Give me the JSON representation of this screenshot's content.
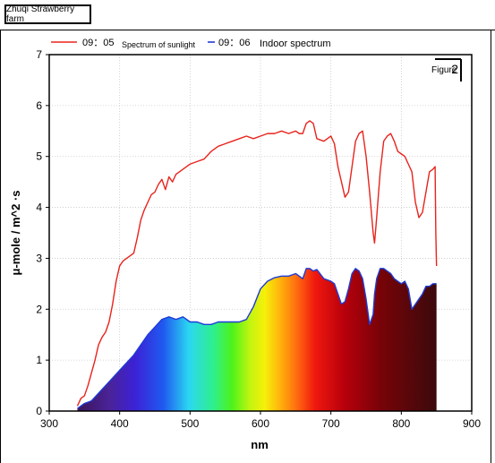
{
  "header": {
    "farm_label": "Zhuqi Strawberry farm"
  },
  "figure_label": {
    "prefix": "Figure",
    "number": "2"
  },
  "chart_data": {
    "type": "line",
    "title": "",
    "xlabel": "nm",
    "ylabel": "μ-mole / m^2 ·s",
    "xlim": [
      300,
      900
    ],
    "ylim": [
      0,
      7
    ],
    "x_ticks": [
      "300",
      "400",
      "500",
      "600",
      "700",
      "800",
      "900"
    ],
    "y_ticks": [
      "0",
      "1",
      "2",
      "3",
      "4",
      "5",
      "6",
      "7"
    ],
    "grid": true,
    "legend_position": "top",
    "legend": [
      {
        "time": "09：05",
        "label": "Spectrum of sunlight",
        "color": "#e8231c"
      },
      {
        "time": "09：06",
        "label": "Indoor spectrum",
        "color": "#1f3bd6"
      }
    ],
    "series": [
      {
        "name": "Spectrum of sunlight",
        "color": "#e8231c",
        "x": [
          340,
          345,
          350,
          355,
          360,
          365,
          370,
          375,
          380,
          385,
          390,
          395,
          400,
          405,
          410,
          415,
          420,
          425,
          430,
          435,
          440,
          445,
          450,
          455,
          460,
          465,
          470,
          475,
          480,
          485,
          490,
          495,
          500,
          510,
          520,
          530,
          540,
          550,
          560,
          570,
          580,
          590,
          600,
          610,
          620,
          630,
          640,
          650,
          655,
          660,
          665,
          670,
          675,
          680,
          690,
          700,
          705,
          710,
          715,
          720,
          725,
          730,
          735,
          740,
          745,
          750,
          755,
          760,
          762,
          765,
          770,
          775,
          780,
          785,
          790,
          795,
          800,
          805,
          810,
          815,
          820,
          825,
          830,
          835,
          840,
          845,
          848,
          849,
          850
        ],
        "y": [
          0.1,
          0.25,
          0.3,
          0.5,
          0.75,
          1.0,
          1.3,
          1.45,
          1.55,
          1.75,
          2.1,
          2.55,
          2.85,
          2.95,
          3.0,
          3.05,
          3.1,
          3.4,
          3.75,
          3.95,
          4.1,
          4.25,
          4.3,
          4.45,
          4.55,
          4.35,
          4.6,
          4.5,
          4.65,
          4.7,
          4.75,
          4.8,
          4.85,
          4.9,
          4.95,
          5.1,
          5.2,
          5.25,
          5.3,
          5.35,
          5.4,
          5.35,
          5.4,
          5.45,
          5.45,
          5.5,
          5.45,
          5.5,
          5.45,
          5.45,
          5.65,
          5.7,
          5.65,
          5.35,
          5.3,
          5.4,
          5.25,
          4.8,
          4.5,
          4.2,
          4.3,
          4.8,
          5.3,
          5.45,
          5.5,
          5.0,
          4.3,
          3.5,
          3.3,
          3.8,
          4.7,
          5.3,
          5.4,
          5.45,
          5.3,
          5.1,
          5.05,
          5.0,
          4.85,
          4.7,
          4.1,
          3.8,
          3.9,
          4.3,
          4.7,
          4.75,
          4.8,
          3.5,
          2.85
        ]
      },
      {
        "name": "Indoor spectrum",
        "color": "#1f3bd6",
        "x": [
          340,
          345,
          350,
          360,
          370,
          380,
          390,
          400,
          410,
          420,
          430,
          440,
          450,
          460,
          470,
          480,
          490,
          500,
          510,
          520,
          530,
          540,
          550,
          560,
          570,
          580,
          590,
          600,
          610,
          620,
          630,
          640,
          650,
          660,
          665,
          670,
          675,
          680,
          690,
          700,
          705,
          710,
          715,
          720,
          725,
          730,
          735,
          740,
          745,
          750,
          755,
          760,
          762,
          765,
          770,
          775,
          780,
          785,
          790,
          795,
          800,
          805,
          810,
          815,
          820,
          825,
          830,
          835,
          840,
          845,
          850
        ],
        "y": [
          0.05,
          0.1,
          0.15,
          0.2,
          0.35,
          0.5,
          0.65,
          0.8,
          0.95,
          1.1,
          1.3,
          1.5,
          1.65,
          1.8,
          1.85,
          1.8,
          1.85,
          1.75,
          1.75,
          1.7,
          1.7,
          1.75,
          1.75,
          1.75,
          1.75,
          1.8,
          2.05,
          2.4,
          2.55,
          2.62,
          2.65,
          2.65,
          2.7,
          2.6,
          2.8,
          2.8,
          2.75,
          2.78,
          2.6,
          2.55,
          2.5,
          2.3,
          2.1,
          2.15,
          2.4,
          2.7,
          2.8,
          2.75,
          2.6,
          2.2,
          1.7,
          1.9,
          2.3,
          2.6,
          2.8,
          2.8,
          2.75,
          2.7,
          2.6,
          2.55,
          2.5,
          2.55,
          2.4,
          2.0,
          2.1,
          2.2,
          2.3,
          2.45,
          2.45,
          2.5,
          2.5
        ]
      }
    ]
  }
}
